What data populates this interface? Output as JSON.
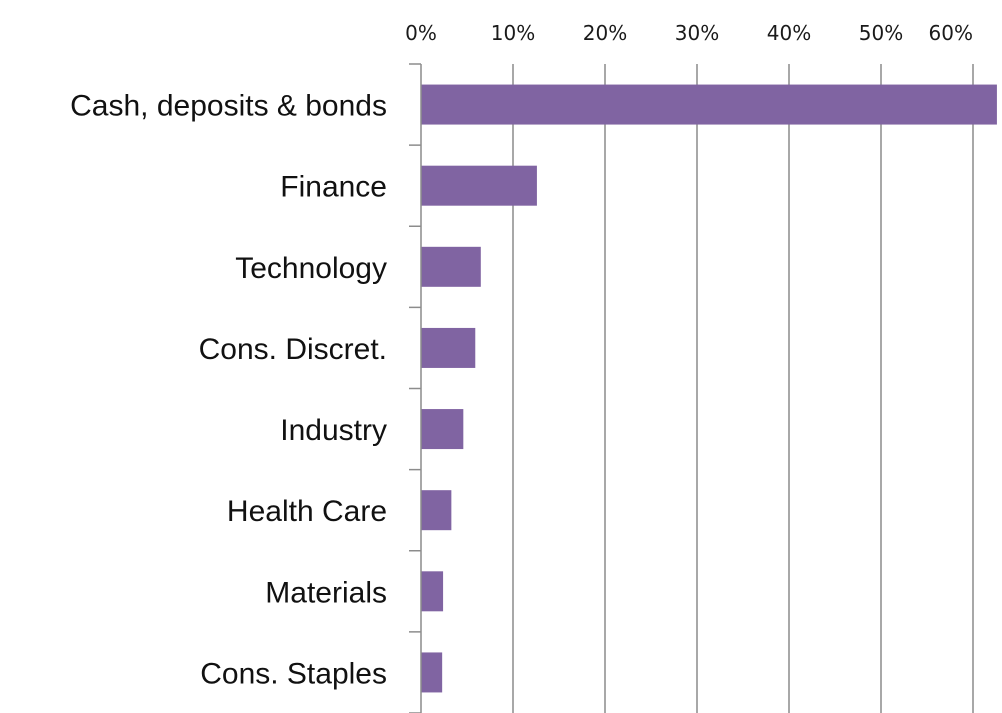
{
  "chart_data": {
    "type": "bar",
    "orientation": "horizontal",
    "categories": [
      "Cash, deposits & bonds",
      "Finance",
      "Technology",
      "Cons. Discret.",
      "Industry",
      "Health Care",
      "Materials",
      "Cons. Staples"
    ],
    "values": [
      62.6,
      12.6,
      6.5,
      5.9,
      4.6,
      3.3,
      2.4,
      2.3
    ],
    "x_ticks": [
      "0%",
      "10%",
      "20%",
      "30%",
      "40%",
      "50%",
      "60%"
    ],
    "x_tick_values": [
      0,
      10,
      20,
      30,
      40,
      50,
      60
    ],
    "xlim": [
      0,
      62.6
    ],
    "x_axis_position": "top",
    "grid": true,
    "title": "",
    "xlabel": "",
    "ylabel": "",
    "bar_color": "#8064a2"
  }
}
